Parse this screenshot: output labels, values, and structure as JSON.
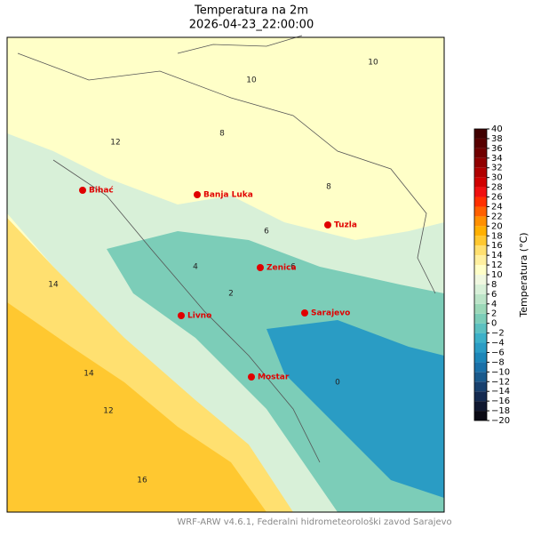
{
  "title": "Temperatura na 2m",
  "subtitle": "2026-04-23_22:00:00",
  "footer": "WRF-ARW v4.6.1, Federalni hidrometeorološki zavod Sarajevo",
  "cities": [
    "Bihać",
    "Banja Luka",
    "Tuzla",
    "Zenica",
    "Livno",
    "Sarajevo",
    "Mostar"
  ],
  "contour_labels": [
    10,
    8,
    6,
    4,
    2,
    0,
    12,
    14,
    16,
    10,
    8,
    6,
    14,
    12
  ],
  "colorbar": {
    "label": "Temperatura (°C)",
    "lim": [
      -20,
      40
    ],
    "ticks": [
      {
        "value": -20,
        "label": "−20"
      },
      {
        "value": -18,
        "label": "−18"
      },
      {
        "value": -16,
        "label": "−16"
      },
      {
        "value": -14,
        "label": "−14"
      },
      {
        "value": -12,
        "label": "−12"
      },
      {
        "value": -10,
        "label": "−10"
      },
      {
        "value": -8,
        "label": "−8"
      },
      {
        "value": -6,
        "label": "−6"
      },
      {
        "value": -4,
        "label": "−4"
      },
      {
        "value": -2,
        "label": "−2"
      },
      0,
      2,
      4,
      6,
      8,
      10,
      12,
      14,
      16,
      18,
      20,
      22,
      24,
      26,
      28,
      30,
      32,
      34,
      36,
      38,
      40
    ],
    "colors": [
      "#0a0a14",
      "#101830",
      "#142a50",
      "#18406e",
      "#1a5a8c",
      "#1a70a8",
      "#1c86b8",
      "#2a9cc4",
      "#3cb0c8",
      "#5cc0c0",
      "#7ccdb8",
      "#9cd8b8",
      "#bce4c8",
      "#d8f0d8",
      "#f0f8e0",
      "#ffffc8",
      "#fff0a0",
      "#ffe070",
      "#ffc830",
      "#ffb000",
      "#ff9000",
      "#ff6000",
      "#ff3000",
      "#f01010",
      "#d00000",
      "#b00000",
      "#900000",
      "#700000",
      "#580000",
      "#400000"
    ]
  }
}
